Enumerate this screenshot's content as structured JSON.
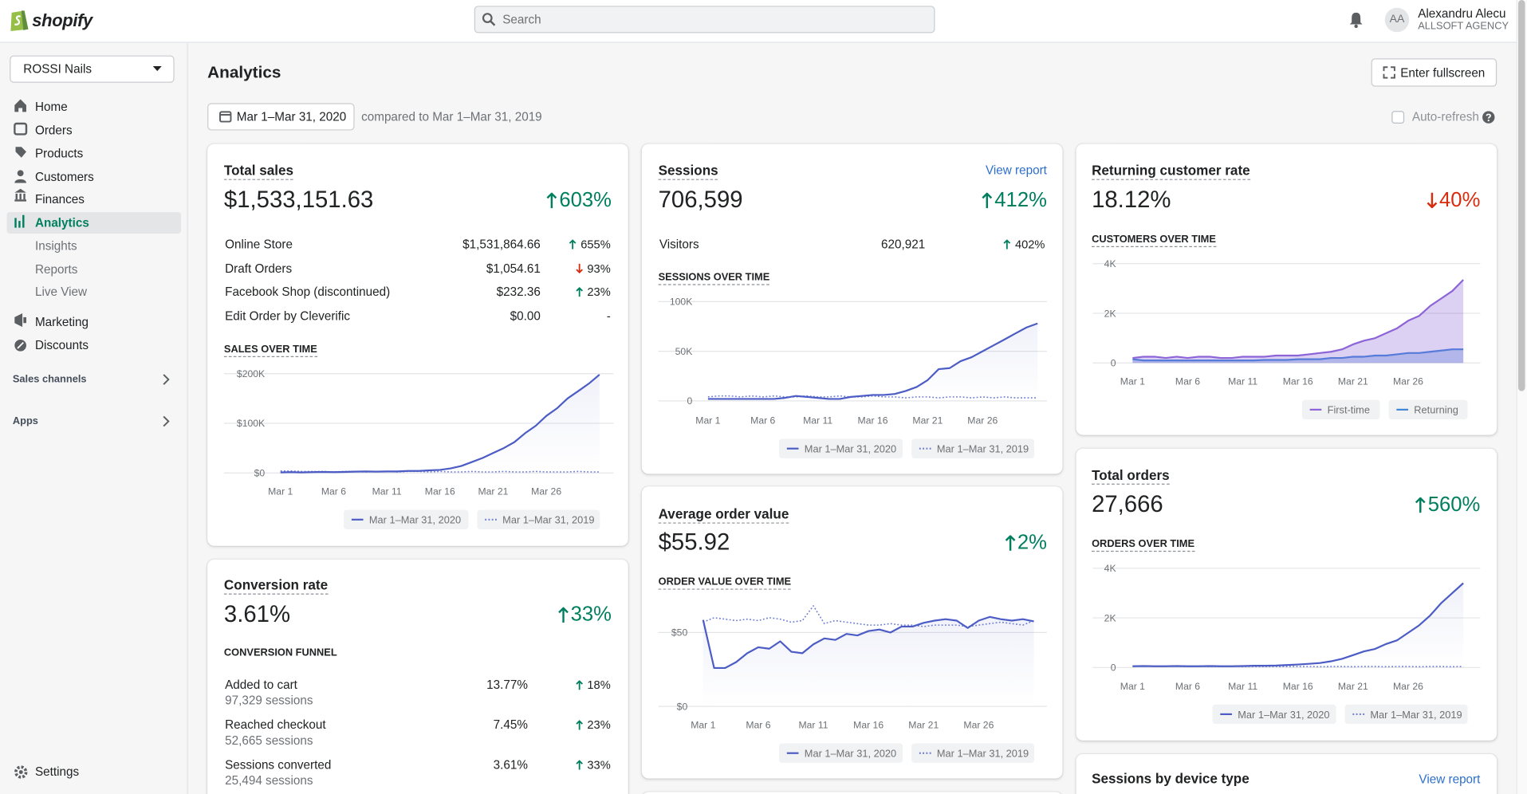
{
  "header": {
    "logo": "shopify",
    "search": "Search",
    "avatar": "AA",
    "user": "Alexandru Alecu",
    "org": "ALLSOFT AGENCY"
  },
  "sidebar": {
    "store": "ROSSI Nails",
    "nav": [
      "Home",
      "Orders",
      "Products",
      "Customers",
      "Finances",
      "Analytics",
      "Insights",
      "Reports",
      "Live View",
      "Marketing",
      "Discounts"
    ],
    "sections": [
      "Sales channels",
      "Apps"
    ],
    "settings": "Settings"
  },
  "toolbar": {
    "title": "Analytics",
    "fullscreen": "Enter fullscreen",
    "date": "Mar 1–Mar 31, 2020",
    "compare": "compared to Mar 1–Mar 31, 2019",
    "auto_refresh": "Auto-refresh"
  },
  "cards": {
    "total_sales": {
      "title": "Total sales",
      "value": "$1,533,151.63",
      "change": "603%",
      "trend": "up",
      "rows": [
        {
          "label": "Online Store",
          "value": "$1,531,864.66",
          "change": "655%",
          "trend": "up"
        },
        {
          "label": "Draft Orders",
          "value": "$1,054.61",
          "change": "93%",
          "trend": "down"
        },
        {
          "label": "Facebook Shop (discontinued)",
          "value": "$232.36",
          "change": "23%",
          "trend": "up"
        },
        {
          "label": "Edit Order by Cleverific",
          "value": "$0.00",
          "change": "-"
        }
      ]
    },
    "sessions": {
      "title": "Sessions",
      "link": "View report",
      "value": "706,599",
      "change": "412%",
      "trend": "up",
      "rows": [
        {
          "label": "Visitors",
          "value": "620,921",
          "change": "402%",
          "trend": "up"
        }
      ]
    },
    "average_order_value": {
      "title": "Average order value",
      "value": "$55.92",
      "change": "2%",
      "trend": "up"
    },
    "conversion_rate": {
      "title": "Conversion rate",
      "value": "3.61%",
      "change": "33%",
      "trend": "up",
      "subtitle": "CONVERSION FUNNEL",
      "rows": [
        {
          "label": "Added to cart",
          "sub": "97,329 sessions",
          "value": "13.77%",
          "change": "18%",
          "trend": "up"
        },
        {
          "label": "Reached checkout",
          "sub": "52,665 sessions",
          "value": "7.45%",
          "change": "23%",
          "trend": "up"
        },
        {
          "label": "Sessions converted",
          "sub": "25,494 sessions",
          "value": "3.61%",
          "change": "33%",
          "trend": "up"
        }
      ]
    },
    "returning_customer_rate": {
      "title": "Returning customer rate",
      "value": "18.12%",
      "change": "40%",
      "trend": "down"
    },
    "total_orders": {
      "title": "Total orders",
      "value": "27,666",
      "change": "560%",
      "trend": "up"
    },
    "sessions_by_device": {
      "title": "Sessions by device type",
      "link": "View report"
    }
  },
  "chart_data": [
    {
      "type": "line",
      "title": "SALES OVER TIME",
      "categories": [
        "Mar 1",
        null,
        null,
        null,
        null,
        "Mar 6",
        null,
        null,
        null,
        null,
        "Mar 11",
        null,
        null,
        null,
        null,
        "Mar 16",
        null,
        null,
        null,
        null,
        "Mar 21",
        null,
        null,
        null,
        null,
        "Mar 26",
        null,
        null,
        null,
        null,
        null
      ],
      "series": [
        {
          "name": "Mar 1–Mar 31, 2020",
          "color": "#4c5cc5",
          "values": [
            1000,
            1500,
            1000,
            1500,
            2000,
            1500,
            2000,
            2500,
            3000,
            2500,
            3000,
            3000,
            4000,
            4000,
            5000,
            6000,
            9000,
            14000,
            22000,
            30000,
            40000,
            50000,
            62000,
            80000,
            95000,
            115000,
            130000,
            150000,
            165000,
            180000,
            198000
          ]
        },
        {
          "name": "Mar 1–Mar 31, 2019",
          "color": "#6f7dd3",
          "line_style": "dotted",
          "values": [
            4000,
            4000,
            3000,
            3000,
            3000,
            2000,
            3000,
            3000,
            2000,
            3000,
            3000,
            2000,
            3000,
            3000,
            2000,
            3000,
            2000,
            2000,
            3000,
            2000,
            2000,
            3000,
            2000,
            2000,
            3000,
            2000,
            2000,
            2000,
            3000,
            2000,
            2000
          ]
        }
      ],
      "ylim": [
        0,
        200000
      ],
      "yticks": [
        {
          "value": 0,
          "label": "$0"
        },
        {
          "value": 100000,
          "label": "$100K"
        },
        {
          "value": 200000,
          "label": "$200K"
        }
      ],
      "grid": true
    },
    {
      "type": "line",
      "title": "SESSIONS OVER TIME",
      "categories": [
        "Mar 1",
        null,
        null,
        null,
        null,
        "Mar 6",
        null,
        null,
        null,
        null,
        "Mar 11",
        null,
        null,
        null,
        null,
        "Mar 16",
        null,
        null,
        null,
        null,
        "Mar 21",
        null,
        null,
        null,
        null,
        "Mar 26",
        null,
        null,
        null,
        null,
        null
      ],
      "series": [
        {
          "name": "Mar 1–Mar 31, 2020",
          "color": "#4c5cc5",
          "values": [
            2000,
            2000,
            2000,
            2000,
            2000,
            2000,
            2000,
            3000,
            5000,
            4000,
            3000,
            2000,
            2000,
            4000,
            5000,
            6000,
            6000,
            7000,
            10000,
            14000,
            21000,
            32000,
            33000,
            40000,
            44000,
            50000,
            56000,
            62000,
            68000,
            74000,
            78000
          ]
        },
        {
          "name": "Mar 1–Mar 31, 2019",
          "color": "#6f7dd3",
          "line_style": "dotted",
          "values": [
            4000,
            5000,
            5000,
            4000,
            5000,
            4000,
            5000,
            4000,
            4000,
            5000,
            4000,
            4000,
            5000,
            4000,
            4000,
            5000,
            4000,
            4000,
            3000,
            4000,
            4000,
            3000,
            4000,
            4000,
            3000,
            4000,
            3000,
            4000,
            3000,
            3000,
            3000
          ]
        }
      ],
      "ylim": [
        0,
        100000
      ],
      "yticks": [
        0,
        {
          "value": 50000,
          "label": "50K"
        },
        {
          "value": 100000,
          "label": "100K"
        }
      ],
      "grid": true
    },
    {
      "type": "line",
      "title": "ORDER VALUE OVER TIME",
      "categories": [
        "Mar 1",
        null,
        null,
        null,
        null,
        "Mar 6",
        null,
        null,
        null,
        null,
        "Mar 11",
        null,
        null,
        null,
        null,
        "Mar 16",
        null,
        null,
        null,
        null,
        "Mar 21",
        null,
        null,
        null,
        null,
        "Mar 26",
        null,
        null,
        null,
        null,
        null
      ],
      "series": [
        {
          "name": "Mar 1–Mar 31, 2020",
          "color": "#4c5cc5",
          "values": [
            58.5,
            26,
            26,
            30,
            36,
            40,
            39,
            44,
            37,
            36,
            42,
            46,
            45,
            49,
            48,
            51,
            52,
            50,
            54,
            54,
            56.5,
            58,
            59,
            58,
            53,
            58,
            60.5,
            59,
            58,
            59,
            57.5
          ]
        },
        {
          "name": "Mar 1–Mar 31, 2019",
          "color": "#6f7dd3",
          "line_style": "dotted",
          "values": [
            57,
            60,
            59,
            58,
            59,
            58,
            60,
            59,
            57,
            58,
            68,
            56,
            58,
            57,
            56,
            55,
            55,
            56,
            55,
            55,
            54,
            55,
            55,
            55,
            54,
            55,
            56,
            57,
            56,
            55,
            58
          ]
        }
      ],
      "ylim": [
        0,
        75
      ],
      "yticks": [
        {
          "value": 0,
          "label": "$0"
        },
        {
          "value": 50,
          "label": "$50"
        }
      ],
      "grid": true
    },
    {
      "type": "area",
      "title": "CUSTOMERS OVER TIME",
      "categories": [
        "Mar 1",
        null,
        null,
        null,
        null,
        "Mar 6",
        null,
        null,
        null,
        null,
        "Mar 11",
        null,
        null,
        null,
        null,
        "Mar 16",
        null,
        null,
        null,
        null,
        "Mar 21",
        null,
        null,
        null,
        null,
        "Mar 26",
        null,
        null,
        null,
        null,
        null
      ],
      "series": [
        {
          "name": "First-time",
          "color": "#8c64d8",
          "values": [
            200,
            250,
            250,
            200,
            250,
            200,
            250,
            250,
            200,
            200,
            250,
            250,
            250,
            300,
            300,
            300,
            350,
            400,
            450,
            550,
            750,
            900,
            1000,
            1200,
            1400,
            1700,
            1900,
            2300,
            2600,
            2900,
            3350
          ]
        },
        {
          "name": "Returning",
          "color": "#3f86d8",
          "values": [
            150,
            100,
            100,
            100,
            100,
            100,
            100,
            100,
            100,
            100,
            100,
            100,
            120,
            120,
            120,
            150,
            150,
            150,
            200,
            200,
            250,
            250,
            300,
            300,
            350,
            400,
            400,
            450,
            500,
            550,
            550
          ]
        }
      ],
      "ylim": [
        0,
        4000
      ],
      "yticks": [
        0,
        {
          "value": 2000,
          "label": "2K"
        },
        {
          "value": 4000,
          "label": "4K"
        }
      ],
      "grid": true
    },
    {
      "type": "line",
      "title": "ORDERS OVER TIME",
      "categories": [
        "Mar 1",
        null,
        null,
        null,
        null,
        "Mar 6",
        null,
        null,
        null,
        null,
        "Mar 11",
        null,
        null,
        null,
        null,
        "Mar 16",
        null,
        null,
        null,
        null,
        "Mar 21",
        null,
        null,
        null,
        null,
        "Mar 26",
        null,
        null,
        null,
        null,
        null
      ],
      "series": [
        {
          "name": "Mar 1–Mar 31, 2020",
          "color": "#4c5cc5",
          "values": [
            50,
            60,
            50,
            50,
            60,
            50,
            50,
            60,
            50,
            50,
            60,
            70,
            70,
            80,
            100,
            120,
            150,
            180,
            250,
            350,
            500,
            650,
            750,
            950,
            1100,
            1400,
            1700,
            2100,
            2600,
            3000,
            3400
          ]
        },
        {
          "name": "Mar 1–Mar 31, 2019",
          "color": "#6f7dd3",
          "line_style": "dotted",
          "values": [
            60,
            60,
            50,
            50,
            50,
            40,
            50,
            40,
            40,
            50,
            40,
            40,
            40,
            40,
            40,
            40,
            40,
            30,
            40,
            40,
            30,
            40,
            40,
            30,
            40,
            40,
            30,
            40,
            40,
            30,
            40
          ]
        }
      ],
      "ylim": [
        0,
        4000
      ],
      "yticks": [
        0,
        {
          "value": 2000,
          "label": "2K"
        },
        {
          "value": 4000,
          "label": "4K"
        }
      ],
      "grid": true
    }
  ]
}
